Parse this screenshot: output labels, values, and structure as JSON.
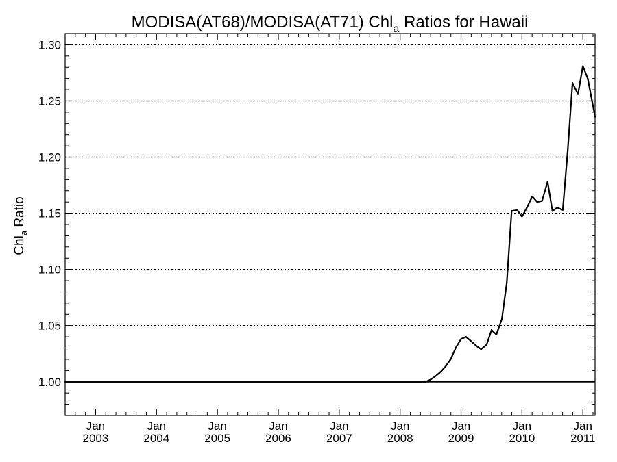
{
  "chart_data": {
    "type": "line",
    "title": {
      "prefix": "MODISA(AT68)/MODISA(AT71)  Chl",
      "subscript": "a",
      "suffix": " Ratios for Hawaii"
    },
    "ylabel": {
      "prefix": "Chl",
      "subscript": "a",
      "suffix": " Ratio"
    },
    "xlim": [
      2002.5,
      2011.2
    ],
    "ylim": [
      0.97,
      1.31
    ],
    "y_ticks": [
      1.0,
      1.05,
      1.1,
      1.15,
      1.2,
      1.25,
      1.3
    ],
    "y_tick_labels": [
      "1.00",
      "1.05",
      "1.10",
      "1.15",
      "1.20",
      "1.25",
      "1.30"
    ],
    "x_ticks": [
      {
        "value": 2003,
        "month": "Jan",
        "year": "2003"
      },
      {
        "value": 2004,
        "month": "Jan",
        "year": "2004"
      },
      {
        "value": 2005,
        "month": "Jan",
        "year": "2005"
      },
      {
        "value": 2006,
        "month": "Jan",
        "year": "2006"
      },
      {
        "value": 2007,
        "month": "Jan",
        "year": "2007"
      },
      {
        "value": 2008,
        "month": "Jan",
        "year": "2008"
      },
      {
        "value": 2009,
        "month": "Jan",
        "year": "2009"
      },
      {
        "value": 2010,
        "month": "Jan",
        "year": "2010"
      },
      {
        "value": 2011,
        "month": "Jan",
        "year": "2011"
      }
    ],
    "grid": "horizontal dotted",
    "reference_line": 1.0,
    "series": [
      {
        "color": "#000000",
        "x": [
          2002.5,
          2008.42,
          2008.5,
          2008.58,
          2008.67,
          2008.75,
          2008.83,
          2008.92,
          2009.0,
          2009.08,
          2009.17,
          2009.25,
          2009.33,
          2009.42,
          2009.5,
          2009.58,
          2009.67,
          2009.75,
          2009.83,
          2009.92,
          2010.0,
          2010.08,
          2010.17,
          2010.25,
          2010.33,
          2010.42,
          2010.5,
          2010.58,
          2010.67,
          2010.75,
          2010.83,
          2010.92,
          2011.0,
          2011.08,
          2011.2
        ],
        "y": [
          1.0,
          1.0,
          1.002,
          1.005,
          1.009,
          1.014,
          1.02,
          1.031,
          1.038,
          1.04,
          1.036,
          1.032,
          1.029,
          1.033,
          1.046,
          1.042,
          1.056,
          1.088,
          1.152,
          1.153,
          1.147,
          1.155,
          1.165,
          1.16,
          1.161,
          1.178,
          1.152,
          1.155,
          1.153,
          1.205,
          1.266,
          1.256,
          1.281,
          1.27,
          1.236
        ]
      }
    ]
  }
}
